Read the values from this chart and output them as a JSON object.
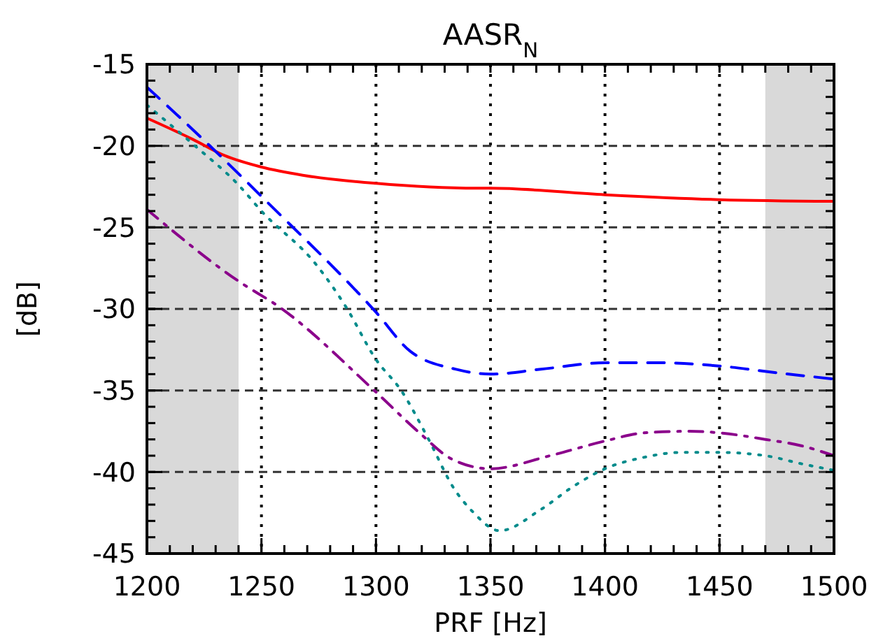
{
  "chart_data": {
    "type": "line",
    "title": "AASR$_{N}$",
    "xlabel": "PRF [Hz]",
    "ylabel": "[dB]",
    "xlim": [
      1200,
      1500
    ],
    "xticks": [
      1200,
      1250,
      1300,
      1350,
      1400,
      1450,
      1500
    ],
    "ylim": [
      -45,
      -15
    ],
    "yticks": [
      -45,
      -40,
      -35,
      -30,
      -25,
      -20,
      -15
    ],
    "grid": true,
    "bands": [
      {
        "axis": "x",
        "from": 1200,
        "to": 1240,
        "color": "#d9d9d9"
      },
      {
        "axis": "x",
        "from": 1470,
        "to": 1500,
        "color": "#d9d9d9"
      }
    ],
    "series": [
      {
        "color": "#ff0000",
        "line_style": "solid",
        "x": [
          1200,
          1220,
          1234,
          1250,
          1268,
          1300,
          1344,
          1350,
          1400,
          1450,
          1500
        ],
        "values": [
          -18.3,
          -19.6,
          -20.6,
          -21.3,
          -21.8,
          -22.3,
          -22.6,
          -22.6,
          -23.0,
          -23.3,
          -23.4
        ]
      },
      {
        "color": "#0000ff",
        "line_style": "dashed",
        "x": [
          1200,
          1226,
          1250,
          1300,
          1315,
          1335,
          1350,
          1372,
          1400,
          1423,
          1450,
          1474,
          1500
        ],
        "values": [
          -16.4,
          -19.8,
          -23.1,
          -30.2,
          -32.6,
          -33.7,
          -34.0,
          -33.7,
          -33.3,
          -33.3,
          -33.5,
          -33.9,
          -34.3
        ]
      },
      {
        "color": "#008b8b",
        "line_style": "dotted",
        "x": [
          1200,
          1221,
          1240,
          1250,
          1274,
          1287,
          1300,
          1311,
          1323,
          1334,
          1342,
          1354,
          1372,
          1386,
          1400,
          1417,
          1433,
          1450,
          1470,
          1486,
          1500
        ],
        "values": [
          -17.5,
          -20.0,
          -22.4,
          -24.0,
          -27.3,
          -29.9,
          -33.1,
          -35.0,
          -38.0,
          -41.0,
          -42.4,
          -43.6,
          -42.3,
          -40.9,
          -39.8,
          -39.1,
          -38.8,
          -38.8,
          -39.0,
          -39.5,
          -39.9
        ]
      },
      {
        "color": "#8b008b",
        "line_style": "dashdot",
        "x": [
          1200,
          1240,
          1258,
          1300,
          1319,
          1333,
          1350,
          1376,
          1400,
          1417,
          1437,
          1450,
          1470,
          1486,
          1500
        ],
        "values": [
          -23.9,
          -28.3,
          -29.9,
          -35.1,
          -37.6,
          -39.2,
          -39.8,
          -39.0,
          -38.1,
          -37.6,
          -37.5,
          -37.6,
          -38.0,
          -38.4,
          -39.0
        ]
      }
    ]
  }
}
